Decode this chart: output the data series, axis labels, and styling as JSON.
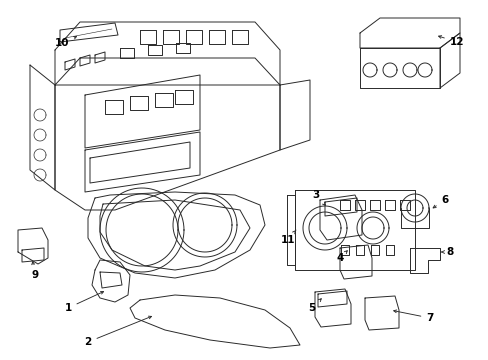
{
  "bg_color": "#ffffff",
  "line_color": "#2a2a2a",
  "label_color": "#000000",
  "figsize": [
    4.89,
    3.6
  ],
  "dpi": 100,
  "lw": 0.7,
  "fs": 7.5
}
